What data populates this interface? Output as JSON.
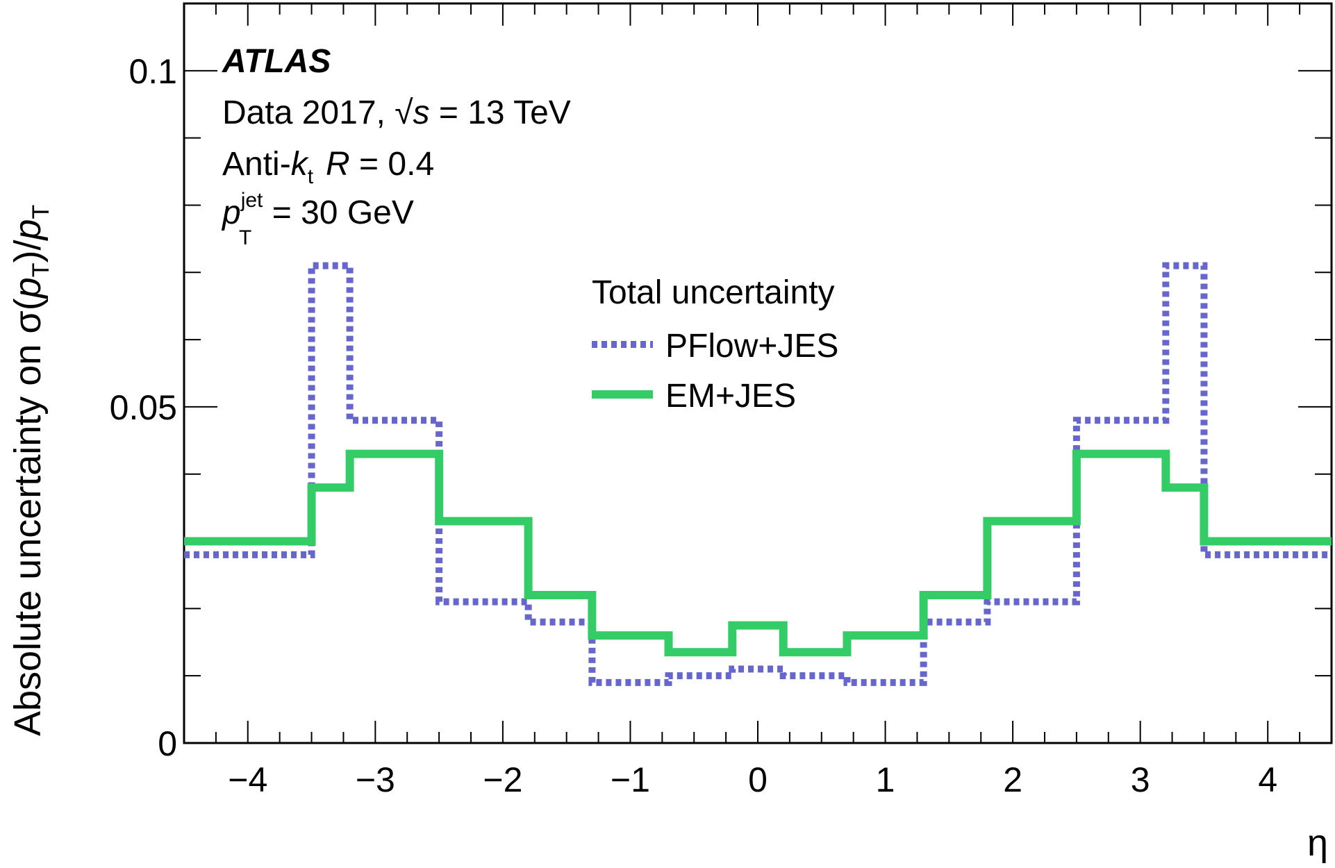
{
  "chart_data": {
    "type": "line",
    "title": "",
    "xlabel": "η",
    "ylabel": "Absolute uncertainty on σ(pT)/pT",
    "xlim": [
      -4.5,
      4.5
    ],
    "ylim": [
      0,
      0.11
    ],
    "x_ticks": [
      -4,
      -3,
      -2,
      -1,
      0,
      1,
      2,
      3,
      4
    ],
    "x_tick_labels": [
      "−4",
      "−3",
      "−2",
      "−1",
      "0",
      "1",
      "2",
      "3",
      "4"
    ],
    "y_ticks": [
      0,
      0.05,
      0.1
    ],
    "y_tick_labels": [
      "0",
      "0.05",
      "0.1"
    ],
    "bin_edges": [
      -4.5,
      -3.5,
      -3.2,
      -2.5,
      -1.8,
      -1.3,
      -0.7,
      -0.2,
      0.2,
      0.7,
      1.3,
      1.8,
      2.5,
      3.2,
      3.5,
      4.5
    ],
    "series": [
      {
        "name": "PFlow+JES",
        "style": "dotted",
        "color": "#6666cc",
        "values": [
          0.028,
          0.071,
          0.048,
          0.021,
          0.018,
          0.009,
          0.01,
          0.011,
          0.01,
          0.009,
          0.018,
          0.021,
          0.048,
          0.071,
          0.028
        ]
      },
      {
        "name": "EM+JES",
        "style": "solid",
        "color": "#33cc66",
        "values": [
          0.03,
          0.038,
          0.043,
          0.033,
          0.022,
          0.016,
          0.0135,
          0.0175,
          0.0135,
          0.016,
          0.022,
          0.033,
          0.043,
          0.038,
          0.03
        ]
      }
    ],
    "legend": {
      "title": "Total uncertainty",
      "placement": "center"
    },
    "grid": false
  },
  "annotations": {
    "experiment": "ATLAS",
    "data_prefix": "Data 2017, ",
    "sqrt_s": "√s",
    "energy": " = 13 TeV",
    "algo_prefix": "Anti-",
    "algo_k": "k",
    "algo_k_sub": "t",
    "algo_R": "R",
    "algo_R_val": " = 0.4",
    "pt_p": "p",
    "pt_sup": "jet",
    "pt_sub": "T",
    "pt_value": " = 30 GeV"
  },
  "axis_labels": {
    "y_prefix": "Absolute uncertainty on σ(",
    "y_p1": "p",
    "y_sub1": "T",
    "y_mid": ")/",
    "y_p2": "p",
    "y_sub2": "T",
    "x": "η"
  }
}
